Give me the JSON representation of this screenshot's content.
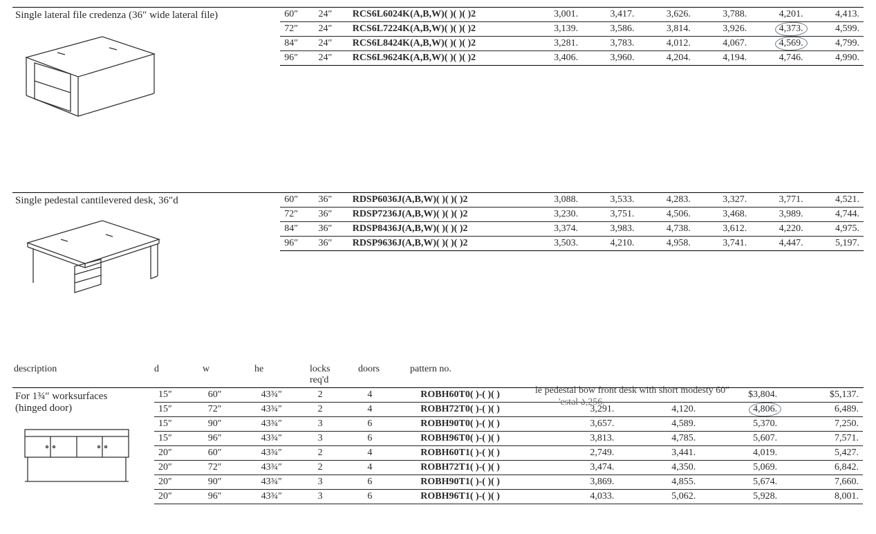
{
  "section1": {
    "title": "Single lateral file credenza (36″ wide lateral file)",
    "rows": [
      {
        "w": "60″",
        "d": "24″",
        "pat": "RCS6L6024K(A,B,W)( )( )( )2",
        "p": [
          "3,001.",
          "3,417.",
          "3,626.",
          "3,788.",
          "4,201.",
          "4,413."
        ]
      },
      {
        "w": "72″",
        "d": "24″",
        "pat": "RCS6L7224K(A,B,W)( )( )( )2",
        "p": [
          "3,139.",
          "3,586.",
          "3,814.",
          "3,926.",
          "4,373.",
          "4,599."
        ],
        "circle": 4
      },
      {
        "w": "84″",
        "d": "24″",
        "pat": "RCS6L8424K(A,B,W)( )( )( )2",
        "p": [
          "3,281.",
          "3,783.",
          "4,012.",
          "4,067.",
          "4,569.",
          "4,799."
        ],
        "circle": 4
      },
      {
        "w": "96″",
        "d": "24″",
        "pat": "RCS6L9624K(A,B,W)( )( )( )2",
        "p": [
          "3,406.",
          "3,960.",
          "4,204.",
          "4,194.",
          "4,746.",
          "4,990."
        ]
      }
    ]
  },
  "section2": {
    "title": "Single pedestal cantilevered desk, 36″d",
    "rows": [
      {
        "w": "60″",
        "d": "36″",
        "pat": "RDSP6036J(A,B,W)( )( )( )2",
        "p": [
          "3,088.",
          "3,533.",
          "4,283.",
          "3,327.",
          "3,771.",
          "4,521."
        ]
      },
      {
        "w": "72″",
        "d": "36″",
        "pat": "RDSP7236J(A,B,W)( )( )( )2",
        "p": [
          "3,230.",
          "3,751.",
          "4,506.",
          "3,468.",
          "3,989.",
          "4,744."
        ]
      },
      {
        "w": "84″",
        "d": "36″",
        "pat": "RDSP8436J(A,B,W)( )( )( )2",
        "p": [
          "3,374.",
          "3,983.",
          "4,738.",
          "3,612.",
          "4,220.",
          "4,975."
        ]
      },
      {
        "w": "96″",
        "d": "36″",
        "pat": "RDSP9636J(A,B,W)( )( )( )2",
        "p": [
          "3,503.",
          "4,210.",
          "4,958.",
          "3,741.",
          "4,447.",
          "5,197."
        ]
      }
    ]
  },
  "section3": {
    "headers": {
      "desc": "description",
      "d": "d",
      "w": "w",
      "he": "he",
      "locks": "locks\nreq'd",
      "doors": "doors",
      "pattern": "pattern no."
    },
    "desc_lines": [
      "For 1¾″ worksurfaces",
      "(hinged door)"
    ],
    "overlay": {
      "line": "le pedestal bow front desk with short modesty    60″",
      "sub": "'estal             ა,256."
    },
    "rows": [
      {
        "d": "15″",
        "w": "60″",
        "h": "43¾″",
        "lk": "2",
        "dr": "4",
        "pn": "ROBH60T0( )-( )( )",
        "p": [
          "",
          "",
          "$3,804.",
          "$5,137."
        ]
      },
      {
        "d": "15″",
        "w": "72″",
        "h": "43¾″",
        "lk": "2",
        "dr": "4",
        "pn": "ROBH72T0( )-( )( )",
        "p": [
          "3,291.",
          "4,120.",
          "4,806.",
          "6,489."
        ],
        "circle": 2
      },
      {
        "d": "15″",
        "w": "90″",
        "h": "43¾″",
        "lk": "3",
        "dr": "6",
        "pn": "ROBH90T0( )-( )( )",
        "p": [
          "3,657.",
          "4,589.",
          "5,370.",
          "7,250."
        ]
      },
      {
        "d": "15″",
        "w": "96″",
        "h": "43¾″",
        "lk": "3",
        "dr": "6",
        "pn": "ROBH96T0( )-( )( )",
        "p": [
          "3,813.",
          "4,785.",
          "5,607.",
          "7,571."
        ]
      },
      {
        "d": "20″",
        "w": "60″",
        "h": "43¾″",
        "lk": "2",
        "dr": "4",
        "pn": "ROBH60T1( )-( )( )",
        "p": [
          "2,749.",
          "3,441.",
          "4,019.",
          "5,427."
        ]
      },
      {
        "d": "20″",
        "w": "72″",
        "h": "43¾″",
        "lk": "2",
        "dr": "4",
        "pn": "ROBH72T1( )-( )( )",
        "p": [
          "3,474.",
          "4,350.",
          "5,069.",
          "6,842."
        ]
      },
      {
        "d": "20″",
        "w": "90″",
        "h": "43¾″",
        "lk": "3",
        "dr": "6",
        "pn": "ROBH90T1( )-( )( )",
        "p": [
          "3,869.",
          "4,855.",
          "5,674.",
          "7,660."
        ]
      },
      {
        "d": "20″",
        "w": "96″",
        "h": "43¾″",
        "lk": "3",
        "dr": "6",
        "pn": "ROBH96T1( )-( )( )",
        "p": [
          "4,033.",
          "5,062.",
          "5,928.",
          "8,001."
        ]
      }
    ]
  },
  "svg": {
    "credenza_stroke": "#333",
    "desk_stroke": "#333",
    "hutch_stroke": "#333"
  }
}
